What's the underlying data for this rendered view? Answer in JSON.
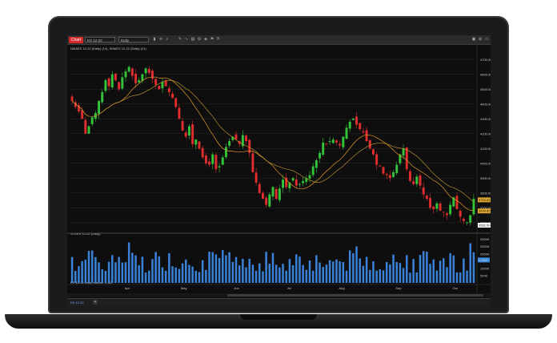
{
  "toolbar": {
    "chart_tab": "Chart",
    "date_field": "ES 12-22",
    "series_type": "Daily",
    "icons": [
      "bar-chart-icon",
      "crosshair-icon",
      "zoom-icon",
      "draw-icon",
      "indicator-icon",
      "template-icon",
      "properties-icon"
    ],
    "right_icons": [
      "snapshot-icon",
      "layout-icon",
      "window-icon"
    ]
  },
  "price_panel": {
    "label": "DMAES 12-22 (Daily) (14), SMAES 12-22 (Daily) (21)",
    "y_ticks": [
      "4700.00",
      "4600.00",
      "4500.00",
      "4400.00",
      "4300.00",
      "4200.00",
      "4100.00",
      "4000.00",
      "3900.00",
      "3800.00",
      "3700.00",
      "3600.00"
    ],
    "badges": [
      {
        "text": "3753.25",
        "color": "#e0a82e"
      },
      {
        "text": "3678.50",
        "color": "#e0a82e"
      },
      {
        "text": "3582.50",
        "color": "#ffffff"
      }
    ]
  },
  "volume_panel": {
    "label": "VOLES 12-22 (Daily)",
    "y_ticks": [
      "3000K",
      "2500K",
      "2000K",
      "1500K",
      "1000K",
      "500K"
    ],
    "badge": {
      "text": "1.58M",
      "color": "#3a8de0"
    },
    "footer_label": "ES 12-22 Daily Volume: 1.6/2"
  },
  "x_axis": {
    "ticks": [
      "Apr",
      "May",
      "Jun",
      "Jul",
      "Aug",
      "Sep",
      "Oct"
    ]
  },
  "bottom_bar": {
    "tab": "ES 12-22",
    "add": "+"
  },
  "chart_data": {
    "type": "candlestick",
    "colors": {
      "up": "#33c43a",
      "down": "#e12d2d",
      "ma_fast": "#e39a2a",
      "ma_slow": "#b8912e",
      "volume": "#3a82d8"
    },
    "ylim": [
      3550,
      4750
    ],
    "close": [
      4420,
      4380,
      4350,
      4300,
      4200,
      4250,
      4310,
      4340,
      4420,
      4480,
      4560,
      4520,
      4600,
      4560,
      4500,
      4580,
      4620,
      4650,
      4590,
      4540,
      4560,
      4600,
      4640,
      4610,
      4570,
      4530,
      4500,
      4550,
      4520,
      4480,
      4440,
      4380,
      4300,
      4220,
      4180,
      4250,
      4130,
      4160,
      4100,
      4040,
      4000,
      3990,
      4060,
      3960,
      3980,
      4040,
      4110,
      4150,
      4180,
      4160,
      4130,
      4190,
      4150,
      4070,
      3940,
      3870,
      3800,
      3760,
      3720,
      3790,
      3840,
      3760,
      3830,
      3890,
      3840,
      3870,
      3900,
      3850,
      3860,
      3880,
      3900,
      3920,
      3980,
      4020,
      4070,
      4140,
      4130,
      4150,
      4160,
      4140,
      4120,
      4180,
      4240,
      4280,
      4300,
      4260,
      4230,
      4210,
      4150,
      4100,
      4060,
      3990,
      3980,
      3930,
      3920,
      3900,
      3940,
      3990,
      4060,
      4100,
      3960,
      3880,
      3860,
      3910,
      3850,
      3790,
      3760,
      3700,
      3690,
      3730,
      3680,
      3670,
      3650,
      3720,
      3770,
      3690,
      3640,
      3610,
      3600,
      3650,
      3760
    ]
  }
}
